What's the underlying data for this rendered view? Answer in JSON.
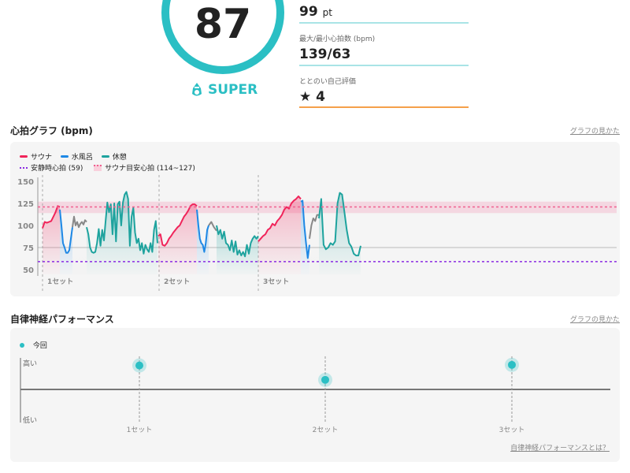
{
  "score": {
    "value": "87",
    "rank": "SUPER",
    "icon": "sauna-hat-icon",
    "color": "#2bbfc4"
  },
  "stats": [
    {
      "label": "",
      "value": "99",
      "unit": "pt",
      "line_color": "#a9e4e6"
    },
    {
      "label": "最大/最小心拍数 (bpm)",
      "value": "139/63",
      "line_color": "#a9e4e6"
    },
    {
      "label": "ととのい自己評価",
      "value": "4",
      "icon": "star-icon",
      "line_color": "#f5a04a"
    }
  ],
  "heart": {
    "title": "心拍グラフ (bpm)",
    "link": "グラフの見かた",
    "legend": {
      "sauna": "サウナ",
      "water": "水風呂",
      "rest": "休憩",
      "resting": "安静時心拍 (59)",
      "target": "サウナ目安心拍 (114~127)"
    },
    "colors": {
      "sauna": "#f0245a",
      "water": "#1e88e5",
      "rest": "#1ea39e",
      "transition": "#888888",
      "resting": "#8a2be2",
      "target": "#f06090"
    },
    "set_labels": [
      "1セット",
      "2セット",
      "3セット"
    ]
  },
  "chart_data": {
    "type": "line",
    "xlabel": "",
    "ylabel": "bpm",
    "yticks": [
      150,
      125,
      100,
      75,
      50
    ],
    "ylim": [
      50,
      150
    ],
    "resting_hr": 59,
    "target_range": [
      114,
      127
    ],
    "target_line": 121,
    "set_starts": [
      0,
      148,
      274
    ],
    "segments": [
      {
        "kind": "sauna",
        "t": [
          0,
          22
        ],
        "bpm": [
          97,
          104,
          103,
          104,
          105,
          110,
          115,
          122,
          121
        ]
      },
      {
        "kind": "water",
        "t": [
          22,
          38
        ],
        "bpm": [
          118,
          100,
          80,
          75,
          69,
          69,
          72,
          85,
          98
        ]
      },
      {
        "kind": "transition",
        "t": [
          38,
          56
        ],
        "bpm": [
          98,
          110,
          100,
          104,
          98,
          102,
          104,
          101,
          106,
          104
        ]
      },
      {
        "kind": "rest",
        "t": [
          56,
          146
        ],
        "bpm": [
          98,
          90,
          75,
          70,
          69,
          70,
          80,
          96,
          77,
          95,
          83,
          105,
          126,
          115,
          124,
          90,
          125,
          82,
          124,
          127,
          100,
          126,
          135,
          138,
          130,
          77,
          110,
          120,
          92,
          80,
          85,
          72,
          80,
          68,
          78,
          73,
          70,
          80,
          70,
          95,
          105,
          80
        ]
      },
      {
        "kind": "sauna",
        "t": [
          147,
          196
        ],
        "bpm": [
          88,
          90,
          78,
          77,
          80,
          85,
          88,
          92,
          95,
          98,
          100,
          105,
          110,
          113,
          117,
          122,
          124,
          124,
          122
        ]
      },
      {
        "kind": "water",
        "t": [
          196,
          211
        ],
        "bpm": [
          118,
          100,
          85,
          80,
          78,
          70,
          80,
          95,
          100
        ]
      },
      {
        "kind": "transition",
        "t": [
          211,
          221
        ],
        "bpm": [
          100,
          104,
          98,
          94
        ]
      },
      {
        "kind": "rest",
        "t": [
          221,
          274
        ],
        "bpm": [
          100,
          90,
          95,
          85,
          93,
          80,
          78,
          72,
          83,
          70,
          82,
          67,
          72,
          66,
          70,
          65,
          78,
          68,
          80,
          85,
          88,
          85,
          88
        ]
      },
      {
        "kind": "sauna",
        "t": [
          274,
          328
        ],
        "bpm": [
          82,
          85,
          88,
          90,
          95,
          97,
          102,
          100,
          105,
          108,
          112,
          118,
          121,
          119,
          125,
          128,
          130,
          133,
          130
        ]
      },
      {
        "kind": "water",
        "t": [
          328,
          339
        ],
        "bpm": [
          127,
          128,
          100,
          80,
          63,
          78
        ]
      },
      {
        "kind": "transition",
        "t": [
          339,
          351
        ],
        "bpm": [
          85,
          100,
          108,
          105,
          112,
          112
        ]
      },
      {
        "kind": "rest",
        "t": [
          351,
          404
        ],
        "bpm": [
          108,
          130,
          78,
          73,
          75,
          80,
          78,
          82,
          125,
          137,
          135,
          115,
          95,
          80,
          76,
          68,
          66,
          66,
          77
        ]
      }
    ]
  },
  "autonomic": {
    "title": "自律神経パフォーマンス",
    "link": "グラフの見かた",
    "legend": "今回",
    "high": "高い",
    "low": "低い",
    "footer_link": "自律神経パフォーマンスとは？",
    "points": [
      {
        "set": "1セット",
        "value": 0.8
      },
      {
        "set": "2セット",
        "value": 0.32
      },
      {
        "set": "3セット",
        "value": 0.82
      }
    ]
  }
}
